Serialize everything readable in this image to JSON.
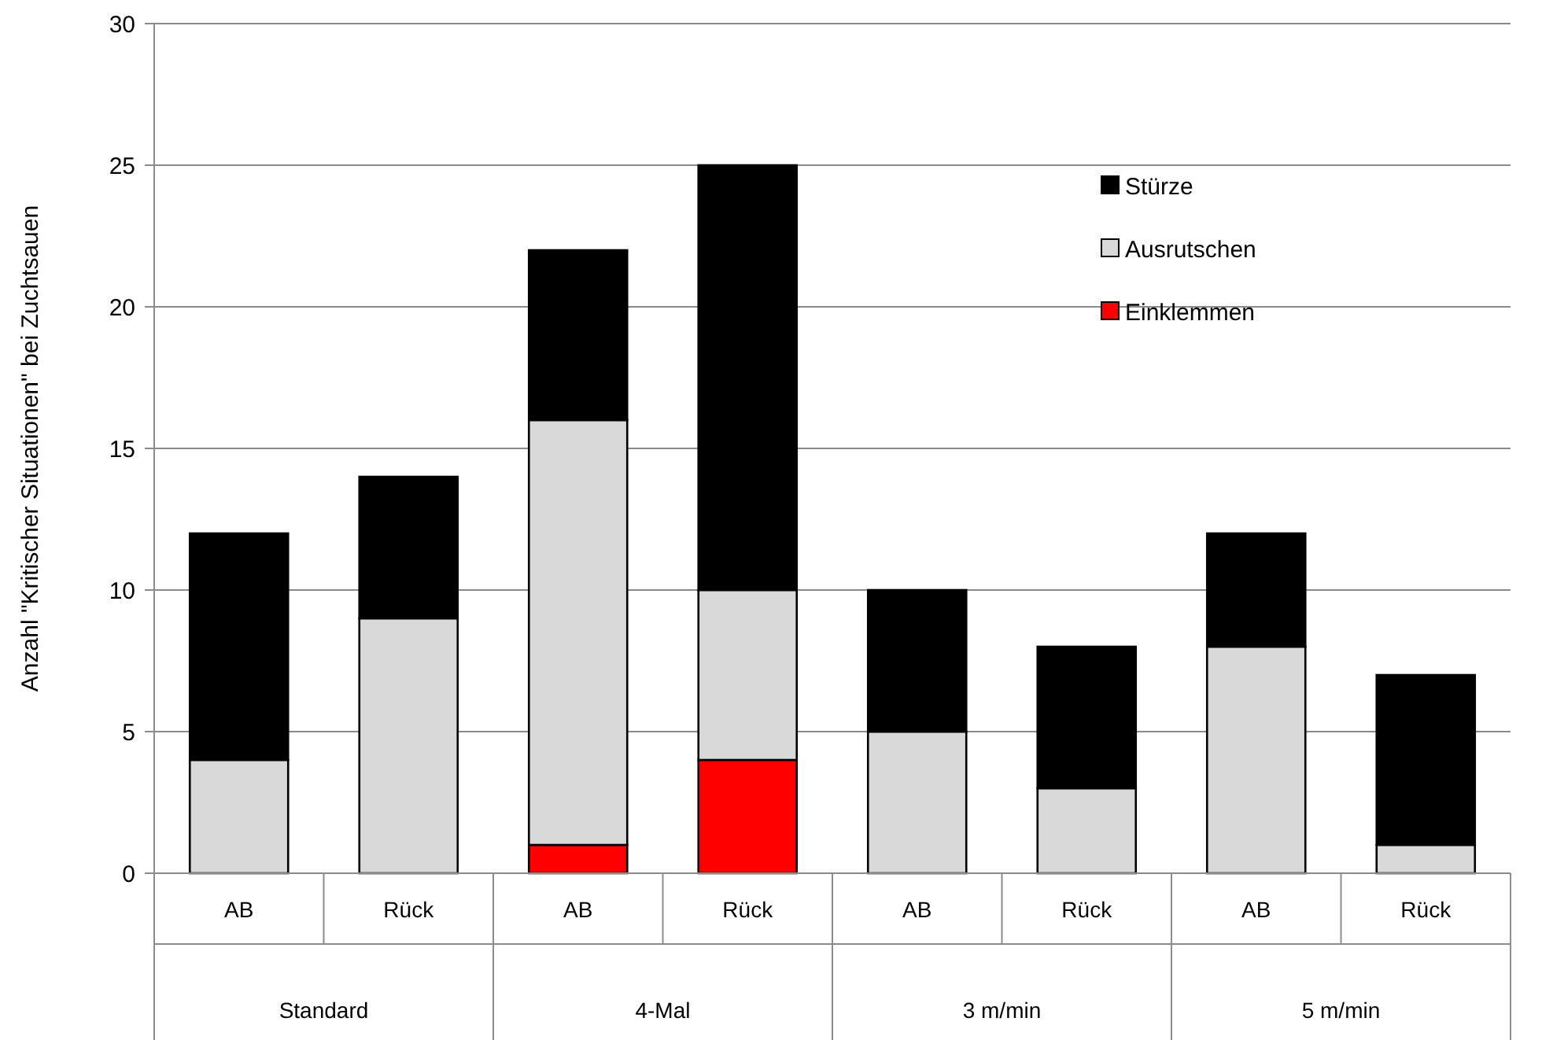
{
  "chart_data": {
    "type": "bar",
    "stacked": true,
    "ylabel": "Anzahl \"Kritischer Situationen\" bei Zuchtsauen",
    "categories": [
      "AB",
      "Rück",
      "AB",
      "Rück",
      "AB",
      "Rück",
      "AB",
      "Rück"
    ],
    "annotations": [
      "Standard",
      "4-Mal",
      "3 m/min",
      "5 m/min"
    ],
    "series": [
      {
        "name": "Einklemmen",
        "color": "#ff0000",
        "values": [
          0,
          0,
          1,
          4,
          0,
          0,
          0,
          0
        ]
      },
      {
        "name": "Ausrutschen",
        "color": "#d9d9d9",
        "values": [
          4,
          9,
          15,
          6,
          5,
          3,
          8,
          1
        ]
      },
      {
        "name": "Stürze",
        "color": "#000000",
        "values": [
          8,
          5,
          6,
          15,
          5,
          5,
          4,
          6
        ]
      }
    ],
    "ylim": [
      0,
      30
    ],
    "yticks": [
      0,
      5,
      10,
      15,
      20,
      25,
      30
    ],
    "grid": "y",
    "legend": "top right"
  }
}
